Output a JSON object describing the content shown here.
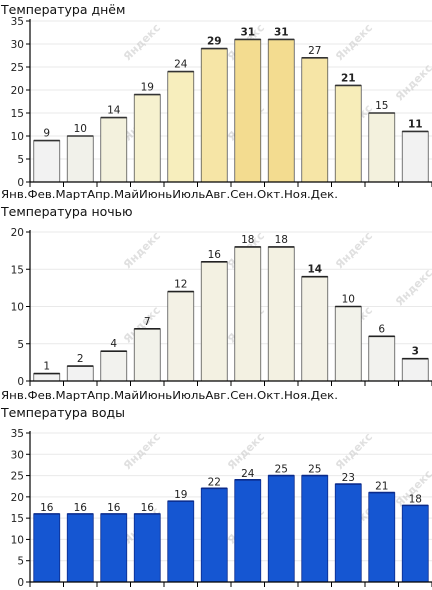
{
  "months": [
    "Янв.",
    "Фев.",
    "Март",
    "Апр.",
    "Май",
    "Июнь",
    "Июль",
    "Авг.",
    "Сен.",
    "Окт.",
    "Ноя.",
    "Дек."
  ],
  "watermark": "Яндекс",
  "chart_data": [
    {
      "type": "bar",
      "title": "Температура днём",
      "categories": [
        "Янв.",
        "Фев.",
        "Март",
        "Апр.",
        "Май",
        "Июнь",
        "Июль",
        "Авг.",
        "Сен.",
        "Окт.",
        "Ноя.",
        "Дек."
      ],
      "values": [
        9,
        10,
        14,
        19,
        24,
        29,
        31,
        31,
        27,
        21,
        15,
        11
      ],
      "ylim": [
        0,
        35
      ],
      "yticks": [
        0,
        5,
        10,
        15,
        20,
        25,
        30,
        35
      ],
      "grid": true,
      "bold_labels": [
        5,
        6,
        7,
        9,
        11
      ],
      "colors": [
        "#f2f2f2",
        "#f1f1ea",
        "#f3f1dd",
        "#f6f1cf",
        "#f7eebd",
        "#f6e5a6",
        "#f3dc90",
        "#f3dc90",
        "#f6e5a6",
        "#f7edb9",
        "#f3f1dd",
        "#f2f2f2"
      ],
      "top_stroke": "#333333"
    },
    {
      "type": "bar",
      "title": "Температура ночью",
      "categories": [
        "Янв.",
        "Фев.",
        "Март",
        "Апр.",
        "Май",
        "Июнь",
        "Июль",
        "Авг.",
        "Сен.",
        "Окт.",
        "Ноя.",
        "Дек."
      ],
      "values": [
        1,
        2,
        4,
        7,
        12,
        16,
        18,
        18,
        14,
        10,
        6,
        3
      ],
      "ylim": [
        0,
        20
      ],
      "yticks": [
        0,
        5,
        10,
        15,
        20
      ],
      "grid": true,
      "bold_labels": [
        8,
        11
      ],
      "colors": [
        "#f2f2f2",
        "#f2f2f2",
        "#f2f2ee",
        "#f2f2ea",
        "#f3f1e5",
        "#f3f1e2",
        "#f3f1e2",
        "#f3f1e2",
        "#f3f1e5",
        "#f2f2ea",
        "#f2f2ee",
        "#f2f2f2"
      ],
      "top_stroke": "#222222"
    },
    {
      "type": "bar",
      "title": "Температура воды",
      "categories": [
        "Янв.",
        "Фев.",
        "Март",
        "Апр.",
        "Май",
        "Июнь",
        "Июль",
        "Авг.",
        "Сен.",
        "Окт.",
        "Ноя.",
        "Дек."
      ],
      "values": [
        16,
        16,
        16,
        16,
        19,
        22,
        24,
        25,
        25,
        23,
        21,
        18
      ],
      "ylim": [
        0,
        35
      ],
      "yticks": [
        0,
        5,
        10,
        15,
        20,
        25,
        30,
        35
      ],
      "grid": true,
      "bold_labels": [],
      "colors": [
        "#1556d2",
        "#1556d2",
        "#1556d2",
        "#1556d2",
        "#1556d2",
        "#1556d2",
        "#1556d2",
        "#1556d2",
        "#1556d2",
        "#1556d2",
        "#1556d2",
        "#1556d2"
      ],
      "top_stroke": "#0a2a8a"
    }
  ]
}
